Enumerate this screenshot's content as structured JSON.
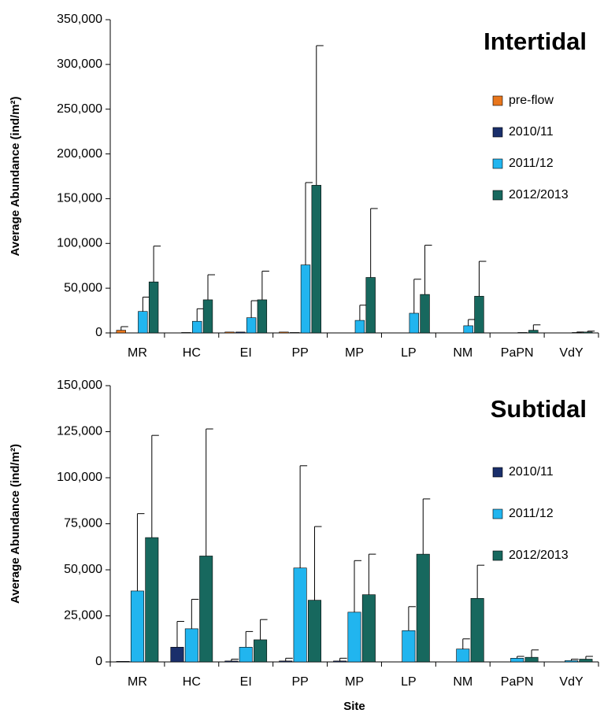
{
  "chart_data": [
    {
      "type": "bar",
      "title": "Intertidal",
      "ylabel": "Average  Abundance (ind/m²)",
      "categories": [
        "MR",
        "HC",
        "EI",
        "PP",
        "MP",
        "LP",
        "NM",
        "PaPN",
        "VdY"
      ],
      "series": [
        {
          "name": "pre-flow",
          "color": "#e8761c",
          "values": [
            3000,
            null,
            1000,
            1000,
            null,
            null,
            null,
            null,
            null
          ],
          "errors": [
            4000,
            null,
            null,
            null,
            null,
            null,
            null,
            null,
            null
          ]
        },
        {
          "name": "2010/11",
          "color": "#1a2f6b",
          "values": [
            null,
            500,
            1000,
            500,
            null,
            null,
            null,
            null,
            null
          ],
          "errors": [
            null,
            null,
            null,
            null,
            null,
            null,
            null,
            null,
            null
          ]
        },
        {
          "name": "2011/12",
          "color": "#21b5ef",
          "values": [
            24000,
            13000,
            17000,
            76000,
            14000,
            22000,
            8000,
            500,
            500
          ],
          "errors": [
            16000,
            14000,
            19000,
            92000,
            17000,
            38000,
            7000,
            null,
            500
          ]
        },
        {
          "name": "2012/2013",
          "color": "#17685e",
          "values": [
            57000,
            37000,
            37000,
            165000,
            62000,
            43000,
            41000,
            3000,
            1000
          ],
          "errors": [
            40000,
            28000,
            32000,
            156000,
            77000,
            55000,
            39000,
            6000,
            1000
          ]
        }
      ],
      "ylim": [
        0,
        350000
      ],
      "yticks": [
        0,
        {
          "value": 50000,
          "label": "50,000"
        },
        {
          "value": 100000,
          "label": "100,000"
        },
        {
          "value": 150000,
          "label": "150,000"
        },
        {
          "value": 200000,
          "label": "200,000"
        },
        {
          "value": 250000,
          "label": "250,000"
        },
        {
          "value": 300000,
          "label": "300,000"
        },
        {
          "value": 350000,
          "label": "350,000"
        }
      ],
      "legend": "upper right"
    },
    {
      "type": "bar",
      "title": "Subtidal",
      "ylabel": "Average  Abundance (ind/m²)",
      "xlabel": "Site",
      "categories": [
        "MR",
        "HC",
        "EI",
        "PP",
        "MP",
        "LP",
        "NM",
        "PaPN",
        "VdY"
      ],
      "series": [
        {
          "name": "2010/11",
          "color": "#1a2f6b",
          "values": [
            300,
            8000,
            500,
            500,
            500,
            null,
            null,
            null,
            null
          ],
          "errors": [
            null,
            14000,
            1000,
            1500,
            1500,
            null,
            null,
            null,
            null
          ]
        },
        {
          "name": "2011/12",
          "color": "#21b5ef",
          "values": [
            38500,
            18000,
            8000,
            51000,
            27000,
            17000,
            7000,
            2000,
            700
          ],
          "errors": [
            42000,
            16000,
            8500,
            55500,
            28000,
            13000,
            5500,
            1000,
            800
          ]
        },
        {
          "name": "2012/2013",
          "color": "#17685e",
          "values": [
            67500,
            57500,
            12000,
            33500,
            36500,
            58500,
            34500,
            2500,
            1500
          ],
          "errors": [
            55500,
            69000,
            11000,
            40000,
            22000,
            30000,
            18000,
            4000,
            1500
          ]
        }
      ],
      "ylim": [
        0,
        150000
      ],
      "yticks": [
        0,
        {
          "value": 25000,
          "label": "25,000"
        },
        {
          "value": 50000,
          "label": "50,000"
        },
        {
          "value": 75000,
          "label": "75,000"
        },
        {
          "value": 100000,
          "label": "100,000"
        },
        {
          "value": 125000,
          "label": "125,000"
        },
        {
          "value": 150000,
          "label": "150,000"
        }
      ],
      "legend": "upper right"
    }
  ]
}
